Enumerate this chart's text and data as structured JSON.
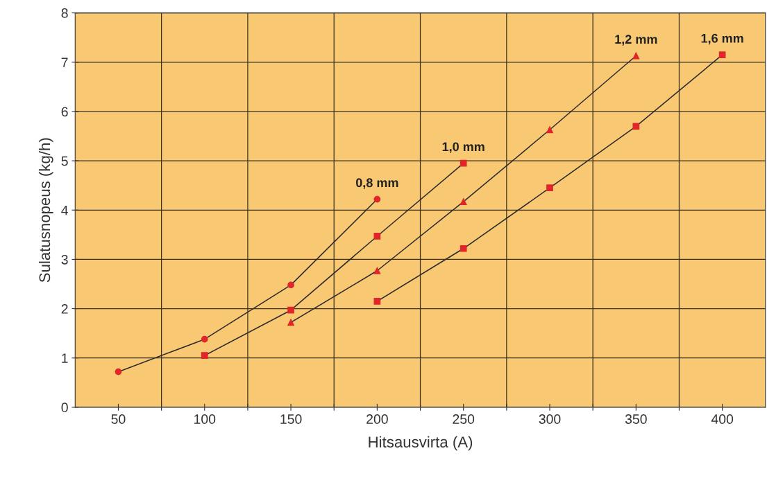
{
  "chart_data": {
    "type": "line",
    "xlabel": "Hitsausvirta (A)",
    "ylabel": "Sulatusnopeus (kg/h)",
    "xlim": [
      25,
      425
    ],
    "ylim": [
      0,
      8
    ],
    "xticks": [
      50,
      {
        "value": 75,
        "label": null
      },
      100,
      {
        "value": 125,
        "label": null
      },
      150,
      {
        "value": 175,
        "label": null
      },
      200,
      {
        "value": 225,
        "label": null
      },
      250,
      {
        "value": 275,
        "label": null
      },
      300,
      {
        "value": 325,
        "label": null
      },
      350,
      {
        "value": 375,
        "label": null
      },
      400
    ],
    "yticks": [
      0,
      1,
      2,
      3,
      4,
      5,
      6,
      7,
      8
    ],
    "grid": true,
    "line_style": "solid",
    "series": [
      {
        "name": "0,8 mm",
        "color": "#e0262a",
        "marker": "circle",
        "x": [
          50,
          100,
          150,
          200
        ],
        "values": [
          0.72,
          1.38,
          2.48,
          4.22
        ]
      },
      {
        "name": "1,0 mm",
        "color": "#e0262a",
        "marker": "square",
        "x": [
          100,
          150,
          200,
          250
        ],
        "values": [
          1.05,
          1.97,
          3.47,
          4.95
        ]
      },
      {
        "name": "1,2 mm",
        "color": "#e0262a",
        "marker": "triangle",
        "x": [
          150,
          200,
          250,
          300,
          350
        ],
        "values": [
          1.72,
          2.77,
          4.17,
          5.63,
          7.13
        ]
      },
      {
        "name": "1,6 mm",
        "color": "#e0262a",
        "marker": "square",
        "x": [
          200,
          250,
          300,
          350,
          400
        ],
        "values": [
          2.15,
          3.22,
          4.45,
          5.7,
          7.15
        ]
      }
    ]
  }
}
